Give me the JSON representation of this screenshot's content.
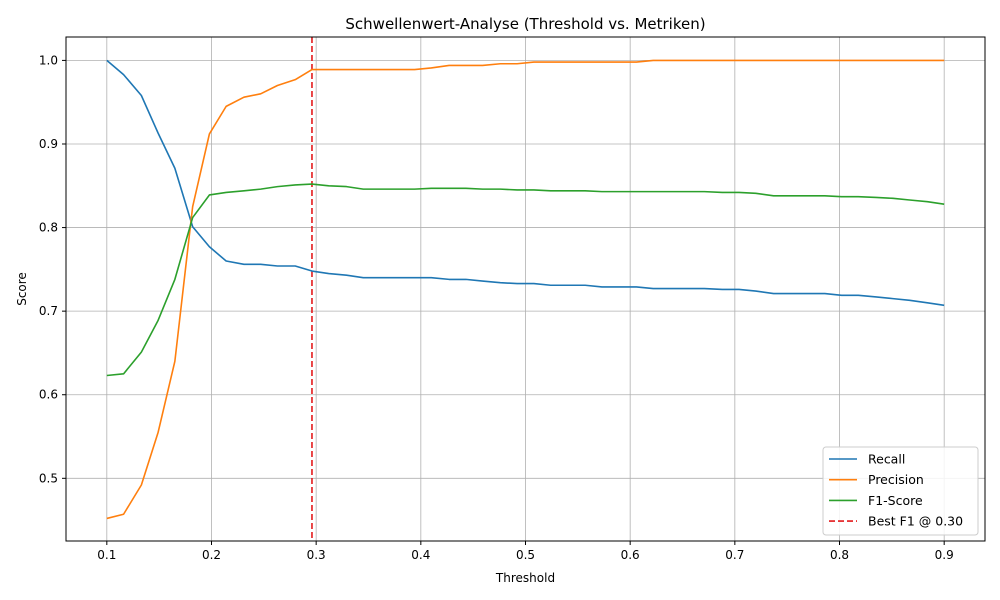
{
  "chart_data": {
    "type": "line",
    "title": "Schwellenwert-Analyse (Threshold vs. Metriken)",
    "xlabel": "Threshold",
    "ylabel": "Score",
    "xlim": [
      0.061,
      0.939
    ],
    "ylim": [
      0.425,
      1.028
    ],
    "xticks": [
      0.1,
      0.2,
      0.3,
      0.4,
      0.5,
      0.6,
      0.7,
      0.8,
      0.9
    ],
    "xtick_labels": [
      "0.1",
      "0.2",
      "0.3",
      "0.4",
      "0.5",
      "0.6",
      "0.7",
      "0.8",
      "0.9"
    ],
    "yticks": [
      0.5,
      0.6,
      0.7,
      0.8,
      0.9,
      1.0
    ],
    "ytick_labels": [
      "0.5",
      "0.6",
      "0.7",
      "0.8",
      "0.9",
      "1.0"
    ],
    "grid": true,
    "legend_position": "lower-right",
    "x": [
      0.1,
      0.116,
      0.133,
      0.149,
      0.165,
      0.182,
      0.198,
      0.214,
      0.231,
      0.247,
      0.263,
      0.28,
      0.296,
      0.312,
      0.329,
      0.345,
      0.361,
      0.378,
      0.394,
      0.41,
      0.427,
      0.443,
      0.459,
      0.476,
      0.492,
      0.508,
      0.524,
      0.541,
      0.557,
      0.573,
      0.59,
      0.606,
      0.622,
      0.639,
      0.655,
      0.671,
      0.688,
      0.704,
      0.72,
      0.737,
      0.753,
      0.769,
      0.786,
      0.802,
      0.818,
      0.835,
      0.851,
      0.867,
      0.884,
      0.9
    ],
    "series": [
      {
        "name": "Recall",
        "color": "#1f77b4",
        "values": [
          1.0,
          0.983,
          0.958,
          0.913,
          0.871,
          0.801,
          0.777,
          0.76,
          0.756,
          0.756,
          0.754,
          0.754,
          0.748,
          0.745,
          0.743,
          0.74,
          0.74,
          0.74,
          0.74,
          0.74,
          0.738,
          0.738,
          0.736,
          0.734,
          0.733,
          0.733,
          0.731,
          0.731,
          0.731,
          0.729,
          0.729,
          0.729,
          0.727,
          0.727,
          0.727,
          0.727,
          0.726,
          0.726,
          0.724,
          0.721,
          0.721,
          0.721,
          0.721,
          0.719,
          0.719,
          0.717,
          0.715,
          0.713,
          0.71,
          0.707
        ]
      },
      {
        "name": "Precision",
        "color": "#ff7f0e",
        "values": [
          0.452,
          0.457,
          0.492,
          0.555,
          0.64,
          0.825,
          0.912,
          0.945,
          0.956,
          0.96,
          0.97,
          0.977,
          0.989,
          0.989,
          0.989,
          0.989,
          0.989,
          0.989,
          0.989,
          0.991,
          0.994,
          0.994,
          0.994,
          0.996,
          0.996,
          0.998,
          0.998,
          0.998,
          0.998,
          0.998,
          0.998,
          0.998,
          1.0,
          1.0,
          1.0,
          1.0,
          1.0,
          1.0,
          1.0,
          1.0,
          1.0,
          1.0,
          1.0,
          1.0,
          1.0,
          1.0,
          1.0,
          1.0,
          1.0,
          1.0
        ]
      },
      {
        "name": "F1-Score",
        "color": "#2ca02c",
        "values": [
          0.623,
          0.625,
          0.651,
          0.689,
          0.738,
          0.812,
          0.839,
          0.842,
          0.844,
          0.846,
          0.849,
          0.851,
          0.852,
          0.85,
          0.849,
          0.846,
          0.846,
          0.846,
          0.846,
          0.847,
          0.847,
          0.847,
          0.846,
          0.846,
          0.845,
          0.845,
          0.844,
          0.844,
          0.844,
          0.843,
          0.843,
          0.843,
          0.843,
          0.843,
          0.843,
          0.843,
          0.842,
          0.842,
          0.841,
          0.838,
          0.838,
          0.838,
          0.838,
          0.837,
          0.837,
          0.836,
          0.835,
          0.833,
          0.831,
          0.828
        ]
      }
    ],
    "best_threshold": {
      "x": 0.296,
      "color": "#e31a1c",
      "label": "Best F1 @ 0.30"
    }
  }
}
